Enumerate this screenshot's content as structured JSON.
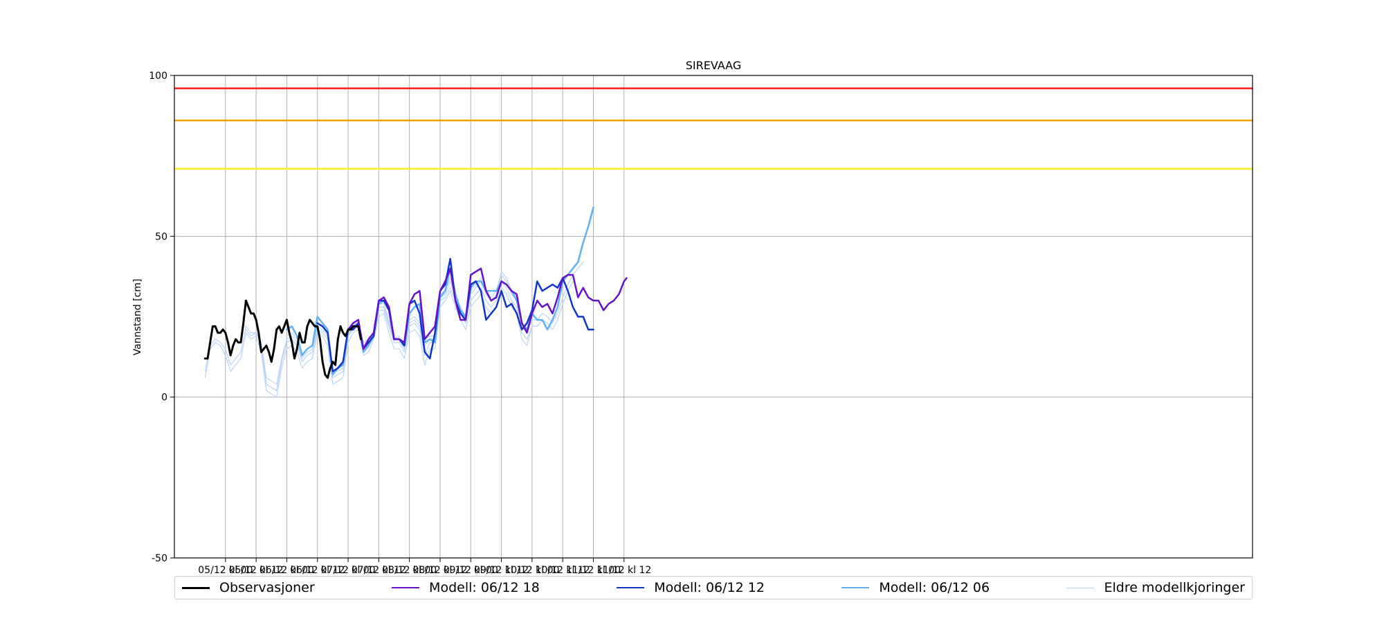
{
  "chart_data": {
    "type": "line",
    "title": "SIREVAAG",
    "ylabel": "Vannstand [cm]",
    "xlabel": "",
    "ylim": [
      -50,
      100
    ],
    "yticks": [
      -50,
      0,
      50,
      100
    ],
    "x_range_hours": [
      -20,
      402
    ],
    "xticks": [
      {
        "h": 0,
        "label": "05/12 kl 00"
      },
      {
        "h": 12,
        "label": "05/12 kl 12"
      },
      {
        "h": 24,
        "label": "06/12 kl 00"
      },
      {
        "h": 36,
        "label": "06/12 kl 12"
      },
      {
        "h": 48,
        "label": "07/12 kl 00"
      },
      {
        "h": 60,
        "label": "07/12 kl 12"
      },
      {
        "h": 72,
        "label": "08/12 kl 00"
      },
      {
        "h": 84,
        "label": "08/12 kl 12"
      },
      {
        "h": 96,
        "label": "09/12 kl 00"
      },
      {
        "h": 108,
        "label": "09/12 kl 12"
      },
      {
        "h": 120,
        "label": "10/12 kl 00"
      },
      {
        "h": 132,
        "label": "10/12 kl 12"
      },
      {
        "h": 144,
        "label": "11/12 kl 00"
      },
      {
        "h": 156,
        "label": "11/12 kl 12"
      }
    ],
    "grid": true,
    "legend_position": "bottom",
    "thresholds": [
      {
        "value": 96,
        "color": "#ff1a1a"
      },
      {
        "value": 86,
        "color": "#f0a000"
      },
      {
        "value": 71,
        "color": "#ffee22"
      }
    ],
    "series": [
      {
        "name": "Eldre modellkjoringer",
        "color": "#b8d4f5",
        "width": 1.2,
        "x": [
          -8,
          -6,
          -4,
          -2,
          0,
          2,
          4,
          6,
          8,
          10,
          12,
          14,
          16,
          18,
          20,
          22,
          24,
          26,
          28,
          30,
          32,
          34,
          36,
          38,
          40,
          42,
          44,
          46,
          48,
          50,
          52,
          54,
          56,
          58,
          60,
          62,
          64,
          66,
          68,
          70,
          72,
          74,
          76,
          78,
          80,
          82,
          84,
          86,
          88,
          90,
          92,
          94,
          96,
          98,
          100,
          102,
          104,
          106,
          108,
          110,
          112,
          114,
          116,
          118,
          120,
          122,
          124,
          126,
          128,
          130,
          132,
          134,
          136
        ],
        "y": [
          6,
          15,
          17,
          16,
          13,
          8,
          10,
          12,
          20,
          18,
          19,
          14,
          2,
          1,
          0,
          9,
          15,
          16,
          14,
          9,
          11,
          12,
          20,
          19,
          16,
          4,
          5,
          6,
          17,
          20,
          21,
          13,
          14,
          18,
          25,
          26,
          20,
          15,
          15,
          12,
          20,
          21,
          19,
          10,
          15,
          15,
          28,
          30,
          33,
          28,
          24,
          21,
          28,
          30,
          32,
          28,
          26,
          28,
          34,
          32,
          28,
          26,
          18,
          16,
          22,
          22,
          24,
          23,
          21,
          24,
          29,
          33,
          36
        ]
      },
      {
        "name": "",
        "color": "#b8d4f5",
        "width": 1.2,
        "x": [
          -8,
          -6,
          -4,
          -2,
          0,
          2,
          4,
          6,
          8,
          10,
          12,
          14,
          16,
          18,
          20,
          22,
          24,
          26,
          28,
          30,
          32,
          34,
          36,
          38,
          40,
          42,
          44,
          46,
          48,
          50,
          52,
          54,
          56,
          58,
          60,
          62,
          64,
          66,
          68,
          70,
          72,
          74,
          76,
          78,
          80,
          82,
          84,
          86,
          88,
          90,
          92,
          94,
          96,
          98,
          100,
          102,
          104,
          106,
          108,
          110,
          112,
          114,
          116,
          118,
          120
        ],
        "y": [
          8,
          16,
          18,
          17,
          15,
          10,
          12,
          14,
          22,
          20,
          20,
          16,
          4,
          3,
          2,
          11,
          17,
          18,
          16,
          11,
          13,
          14,
          21,
          20,
          18,
          6,
          7,
          8,
          19,
          21,
          22,
          15,
          16,
          19,
          27,
          27,
          22,
          17,
          17,
          14,
          22,
          23,
          21,
          13,
          17,
          17,
          30,
          31,
          34,
          30,
          26,
          23,
          30,
          32,
          34,
          30,
          28,
          30,
          36,
          34,
          30,
          28,
          20,
          18,
          22
        ]
      },
      {
        "name": "",
        "color": "#b8d4f5",
        "width": 1.2,
        "x": [
          8,
          10,
          12,
          14,
          16,
          18,
          20,
          22,
          24,
          26,
          28,
          30,
          32,
          34,
          36,
          38,
          40,
          42,
          44,
          46,
          48,
          50,
          52,
          54,
          56,
          58,
          60,
          62,
          64,
          66,
          68,
          70,
          72,
          74,
          76,
          78,
          80,
          82,
          84,
          86,
          88,
          90,
          92,
          94,
          96,
          98,
          100,
          102,
          104,
          106,
          108,
          110,
          112,
          114,
          116,
          118,
          120,
          122,
          124,
          126,
          128,
          130,
          132,
          134,
          136,
          138,
          140
        ],
        "y": [
          21,
          19,
          20,
          17,
          6,
          5,
          4,
          12,
          18,
          19,
          17,
          12,
          14,
          15,
          22,
          21,
          19,
          8,
          8,
          9,
          19,
          22,
          23,
          16,
          17,
          20,
          28,
          28,
          23,
          18,
          18,
          15,
          23,
          24,
          22,
          16,
          18,
          18,
          31,
          32,
          36,
          31,
          27,
          24,
          32,
          34,
          36,
          32,
          30,
          32,
          38,
          36,
          32,
          30,
          22,
          20,
          24,
          24,
          26,
          25,
          23,
          26,
          31,
          35,
          38,
          40,
          42
        ]
      },
      {
        "name": "",
        "color": "#b8d4f5",
        "width": 1.2,
        "x": [
          24,
          26,
          28,
          30,
          32,
          34,
          36,
          38,
          40,
          42,
          44,
          46,
          48,
          50,
          52,
          54,
          56,
          58,
          60,
          62,
          64,
          66,
          68,
          70,
          72,
          74,
          76,
          78,
          80,
          82,
          84,
          86,
          88,
          90,
          92,
          94,
          96,
          98,
          100,
          102,
          104,
          106,
          108,
          110,
          112,
          114,
          116,
          118,
          120
        ],
        "y": [
          19,
          20,
          18,
          13,
          15,
          16,
          23,
          22,
          20,
          8,
          9,
          10,
          20,
          22,
          23,
          17,
          18,
          20,
          29,
          29,
          24,
          18,
          19,
          16,
          24,
          25,
          23,
          18,
          19,
          19,
          32,
          33,
          37,
          32,
          28,
          25,
          33,
          35,
          37,
          33,
          31,
          33,
          39,
          37,
          33,
          31,
          23,
          21,
          25
        ]
      },
      {
        "name": "Modell: 06/12 06",
        "color": "#5fb0f5",
        "width": 2.5,
        "x": [
          24,
          26,
          28,
          30,
          32,
          34,
          36,
          38,
          40,
          42,
          44,
          46,
          48,
          50,
          52,
          54,
          56,
          58,
          60,
          62,
          64,
          66,
          68,
          70,
          72,
          74,
          76,
          78,
          80,
          82,
          84,
          86,
          88,
          90,
          92,
          94,
          96,
          98,
          100,
          102,
          104,
          106,
          108,
          110,
          112,
          114,
          116,
          118,
          120,
          122,
          124,
          126,
          128,
          130,
          132,
          134,
          136,
          138,
          140,
          142,
          144
        ],
        "y": [
          21,
          22,
          19,
          13,
          15,
          16,
          25,
          23,
          21,
          7,
          9,
          10,
          21,
          22,
          23,
          14,
          16,
          19,
          29,
          30,
          28,
          18,
          18,
          16,
          26,
          28,
          29,
          17,
          18,
          17,
          31,
          33,
          40,
          32,
          27,
          25,
          34,
          36,
          36,
          33,
          33,
          33,
          36,
          35,
          33,
          30,
          23,
          21,
          26,
          24,
          24,
          21,
          24,
          28,
          36,
          38,
          40,
          42,
          48,
          53,
          59
        ]
      },
      {
        "name": "Modell: 06/12 12",
        "color": "#0f35c8",
        "width": 2.5,
        "x": [
          36,
          38,
          40,
          42,
          44,
          46,
          48,
          50,
          52,
          54,
          56,
          58,
          60,
          62,
          64,
          66,
          68,
          70,
          72,
          74,
          76,
          78,
          80,
          82,
          84,
          86,
          88,
          90,
          92,
          94,
          96,
          98,
          100,
          102,
          104,
          106,
          108,
          110,
          112,
          114,
          116,
          118,
          120,
          122,
          124,
          126,
          128,
          130,
          132,
          134,
          136,
          138,
          140,
          142,
          144
        ],
        "y": [
          23,
          22,
          20,
          8,
          9,
          11,
          21,
          21,
          23,
          15,
          17,
          19,
          30,
          30,
          27,
          18,
          18,
          16,
          29,
          30,
          26,
          14,
          12,
          20,
          33,
          35,
          43,
          30,
          26,
          24,
          35,
          36,
          33,
          24,
          26,
          28,
          33,
          28,
          29,
          26,
          21,
          23,
          27,
          36,
          33,
          34,
          35,
          34,
          37,
          33,
          28,
          25,
          25,
          21,
          21
        ]
      },
      {
        "name": "Modell: 06/12 18",
        "color": "#6610cc",
        "width": 2.5,
        "x": [
          48,
          50,
          52,
          54,
          56,
          58,
          60,
          62,
          64,
          66,
          68,
          70,
          72,
          74,
          76,
          78,
          80,
          82,
          84,
          86,
          88,
          90,
          92,
          94,
          96,
          98,
          100,
          102,
          104,
          106,
          108,
          110,
          112,
          114,
          116,
          118,
          120,
          122,
          124,
          126,
          128,
          130,
          132,
          134,
          136,
          138,
          140,
          142,
          144,
          146,
          148,
          150,
          152,
          154,
          156,
          157
        ],
        "y": [
          21,
          23,
          24,
          15,
          18,
          20,
          30,
          31,
          28,
          18,
          18,
          17,
          29,
          32,
          33,
          18,
          20,
          22,
          33,
          36,
          40,
          30,
          24,
          24,
          38,
          39,
          40,
          33,
          30,
          31,
          36,
          35,
          33,
          32,
          23,
          20,
          26,
          30,
          28,
          29,
          26,
          31,
          37,
          38,
          38,
          31,
          34,
          31,
          30,
          30,
          27,
          29,
          30,
          32,
          36,
          37
        ]
      },
      {
        "name": "Observasjoner",
        "color": "#000000",
        "width": 3,
        "x": [
          -8,
          -7,
          -6,
          -5,
          -4,
          -3,
          -2,
          -1,
          0,
          1,
          2,
          3,
          4,
          5,
          6,
          7,
          8,
          9,
          10,
          11,
          12,
          13,
          14,
          15,
          16,
          17,
          18,
          19,
          20,
          21,
          22,
          23,
          24,
          25,
          26,
          27,
          28,
          29,
          30,
          31,
          32,
          33,
          34,
          35,
          36,
          37,
          38,
          39,
          40,
          41,
          42,
          43,
          44,
          45,
          46,
          47,
          48,
          49,
          50,
          51,
          52,
          53
        ],
        "y": [
          12,
          12,
          17,
          22,
          22,
          20,
          20,
          21,
          20,
          17,
          13,
          16,
          18,
          17,
          17,
          23,
          30,
          28,
          26,
          26,
          24,
          20,
          14,
          15,
          16,
          14,
          11,
          15,
          21,
          22,
          20,
          22,
          24,
          20,
          17,
          12,
          15,
          20,
          17,
          17,
          22,
          24,
          23,
          22,
          22,
          18,
          11,
          7,
          6,
          9,
          11,
          10,
          18,
          22,
          20,
          19,
          21,
          21,
          22,
          22,
          22,
          18
        ]
      }
    ]
  },
  "legend": [
    {
      "label": "Observasjoner",
      "color": "#000000",
      "width": 3
    },
    {
      "label": "Modell: 06/12 18",
      "color": "#6610cc",
      "width": 2.5
    },
    {
      "label": "Modell: 06/12 12",
      "color": "#0f35c8",
      "width": 2.5
    },
    {
      "label": "Modell: 06/12 06",
      "color": "#5fb0f5",
      "width": 2.5
    },
    {
      "label": "Eldre modellkjoringer",
      "color": "#b8d4f5",
      "width": 1.2
    }
  ]
}
